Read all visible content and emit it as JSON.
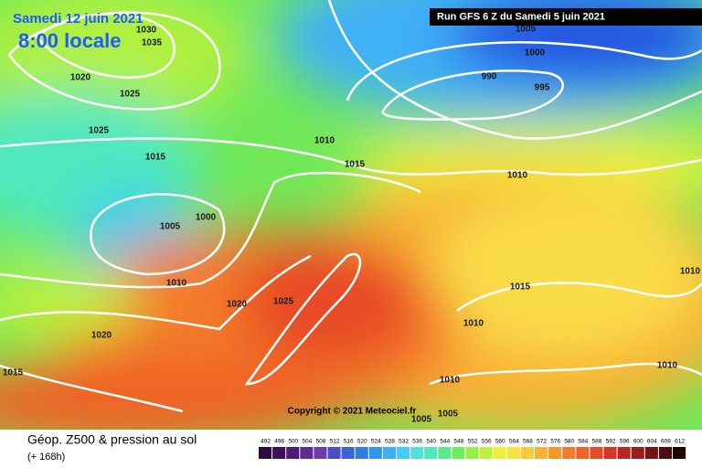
{
  "header": {
    "date": "Samedi 12 juin 2021",
    "time": "8:00 locale",
    "run": "Run GFS 6 Z du Samedi 5 juin 2021"
  },
  "copyright": "Copyright © 2021 Meteociel.fr",
  "footer": {
    "title": "Géop. Z500 & pression au sol",
    "lead": "(+ 168h)"
  },
  "isobar_labels": [
    1030,
    1035,
    1020,
    1025,
    1025,
    1015,
    1010,
    1015,
    1005,
    1000,
    1010,
    1020,
    1025,
    1020,
    1015,
    1005,
    1000,
    990,
    995,
    1010,
    1015,
    1010,
    1010,
    1010,
    1010,
    1005,
    1005
  ],
  "legend": {
    "ticks": [
      492,
      496,
      500,
      504,
      508,
      512,
      516,
      520,
      524,
      528,
      532,
      536,
      540,
      544,
      548,
      552,
      556,
      560,
      564,
      568,
      572,
      576,
      580,
      584,
      588,
      592,
      596,
      600,
      604,
      608,
      612
    ],
    "colors": [
      "#2b0a3d",
      "#3c0f5a",
      "#4e1a78",
      "#5e2a96",
      "#6b3bb0",
      "#4a4ec8",
      "#3a63d8",
      "#2f7ce6",
      "#2f97f0",
      "#38b2f5",
      "#45cdf5",
      "#4fe0e0",
      "#50e8b8",
      "#5aea8c",
      "#72ec5c",
      "#98ee42",
      "#c0f03c",
      "#e6f23c",
      "#fae040",
      "#fcc83c",
      "#f9b034",
      "#f6962e",
      "#f37c2a",
      "#f06228",
      "#e84a28",
      "#d83428",
      "#bc2424",
      "#9a1c1c",
      "#761414",
      "#500c0c",
      "#1a0404"
    ]
  }
}
